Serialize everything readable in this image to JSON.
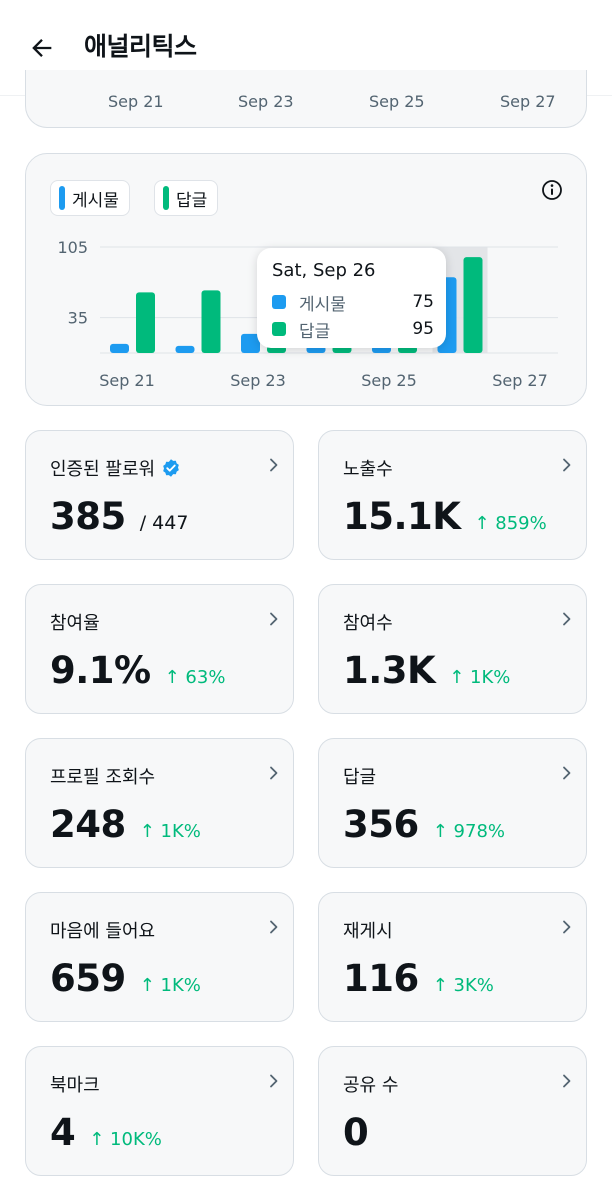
{
  "header": {
    "title": "애널리틱스",
    "back_icon": "arrow-left-icon"
  },
  "previous_chart": {
    "x_ticks": [
      "Sep 21",
      "Sep 23",
      "Sep 25",
      "Sep 27"
    ]
  },
  "chart": {
    "legend": [
      {
        "label": "게시물",
        "color": "#1d9bf0"
      },
      {
        "label": "답글",
        "color": "#00ba7c"
      }
    ],
    "info_icon": "info-icon",
    "tooltip": {
      "title": "Sat, Sep 26",
      "rows": [
        {
          "label": "게시물",
          "value": "75"
        },
        {
          "label": "답글",
          "value": "95"
        }
      ]
    }
  },
  "chart_data": {
    "type": "bar",
    "categories": [
      "Sep 21",
      "Sep 22",
      "Sep 23",
      "Sep 24",
      "Sep 25",
      "Sep 26"
    ],
    "series": [
      {
        "name": "게시물",
        "color": "#1d9bf0",
        "values": [
          9,
          7,
          19,
          7,
          7,
          75
        ]
      },
      {
        "name": "답글",
        "color": "#00ba7c",
        "values": [
          60,
          62,
          7,
          7,
          7,
          95
        ]
      }
    ],
    "y_ticks": [
      105,
      35
    ],
    "x_ticks": [
      "Sep 21",
      "Sep 23",
      "Sep 25",
      "Sep 27"
    ],
    "highlighted_category": "Sep 26",
    "ylim": [
      0,
      105
    ],
    "grid": true
  },
  "stats": [
    {
      "title": "인증된 팔로워",
      "value": "385",
      "total": "/ 447",
      "change": "",
      "verified": true
    },
    {
      "title": "노출수",
      "value": "15.1K",
      "total": "",
      "change": "↑ 859%"
    },
    {
      "title": "참여율",
      "value": "9.1%",
      "total": "",
      "change": "↑ 63%"
    },
    {
      "title": "참여수",
      "value": "1.3K",
      "total": "",
      "change": "↑ 1K%"
    },
    {
      "title": "프로필 조회수",
      "value": "248",
      "total": "",
      "change": "↑ 1K%"
    },
    {
      "title": "답글",
      "value": "356",
      "total": "",
      "change": "↑ 978%"
    },
    {
      "title": "마음에 들어요",
      "value": "659",
      "total": "",
      "change": "↑ 1K%"
    },
    {
      "title": "재게시",
      "value": "116",
      "total": "",
      "change": "↑ 3K%"
    },
    {
      "title": "북마크",
      "value": "4",
      "total": "",
      "change": "↑ 10K%"
    },
    {
      "title": "공유 수",
      "value": "0",
      "total": "",
      "change": ""
    }
  ]
}
